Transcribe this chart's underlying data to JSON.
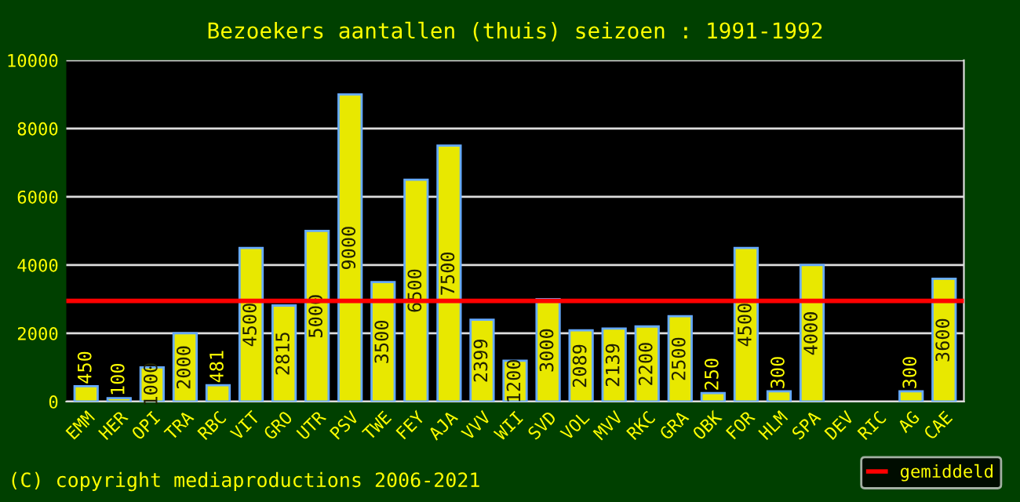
{
  "chart_data": {
    "type": "bar",
    "title": "Bezoekers aantallen (thuis) seizoen : 1991-1992",
    "categories": [
      "EMM",
      "HER",
      "OPI",
      "TRA",
      "RBC",
      "VIT",
      "GRO",
      "UTR",
      "PSV",
      "TWE",
      "FEY",
      "AJA",
      "VVV",
      "WII",
      "SVD",
      "VOL",
      "MVV",
      "RKC",
      "GRA",
      "OBK",
      "FOR",
      "HLM",
      "SPA",
      "DEV",
      "RIC",
      "AG",
      "CAE"
    ],
    "values": [
      450,
      100,
      1000,
      2000,
      481,
      4500,
      2815,
      5000,
      9000,
      3500,
      6500,
      7500,
      2399,
      1200,
      3000,
      2089,
      2139,
      2200,
      2500,
      250,
      4500,
      300,
      4000,
      0,
      0,
      300,
      3600
    ],
    "value_labels": [
      "450",
      "100",
      "1000",
      "2000",
      "481",
      "4500",
      "2815",
      "5000",
      "9000",
      "3500",
      "6500",
      "7500",
      "2399",
      "1200",
      "3000",
      "2089",
      "2139",
      "2200",
      "2500",
      "250",
      "4500",
      "300",
      "4000",
      null,
      null,
      "300",
      "3600"
    ],
    "color": "#e8e800",
    "ylim": [
      0,
      10000
    ],
    "yticks": [
      0,
      2000,
      4000,
      6000,
      8000,
      10000
    ],
    "grid": "y",
    "ref_lines": [
      {
        "axis": "y",
        "value": 2950,
        "label": "gemiddeld",
        "color": "#ff0000"
      }
    ],
    "legend": "bottom right",
    "annotations": [
      "(C) copyright mediaproductions 2006-2021"
    ]
  }
}
